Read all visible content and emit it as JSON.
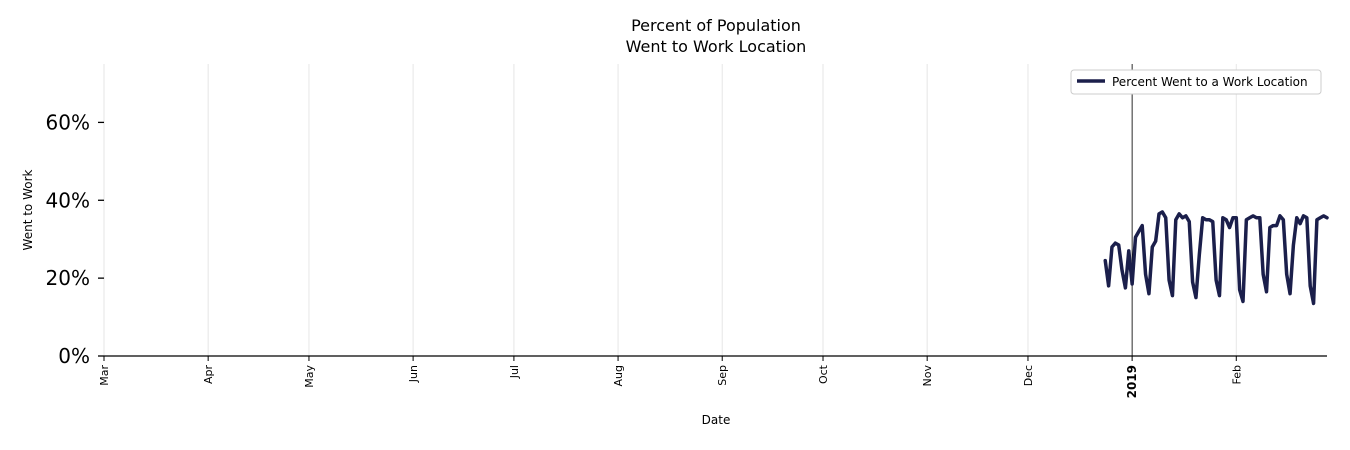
{
  "chart_data": {
    "type": "line",
    "title_line1": "Percent of Population",
    "title_line2": "Went to Work Location",
    "ylabel": "Went to Work",
    "xlabel": "Date",
    "ylim": [
      0,
      75
    ],
    "yticks": [
      0,
      20,
      40,
      60
    ],
    "ytick_labels": [
      "0%",
      "20%",
      "40%",
      "60%"
    ],
    "xlim": [
      "2018-03-01",
      "2019-02-28"
    ],
    "xticks": [
      {
        "date": "2018-03-01",
        "label": "Mar"
      },
      {
        "date": "2018-04-01",
        "label": "Apr"
      },
      {
        "date": "2018-05-01",
        "label": "May"
      },
      {
        "date": "2018-06-01",
        "label": "Jun"
      },
      {
        "date": "2018-07-01",
        "label": "Jul"
      },
      {
        "date": "2018-08-01",
        "label": "Aug"
      },
      {
        "date": "2018-09-01",
        "label": "Sep"
      },
      {
        "date": "2018-10-01",
        "label": "Oct"
      },
      {
        "date": "2018-11-01",
        "label": "Nov"
      },
      {
        "date": "2018-12-01",
        "label": "Dec"
      },
      {
        "date": "2019-01-01",
        "label": "2019",
        "bold": true
      },
      {
        "date": "2019-02-01",
        "label": "Feb"
      }
    ],
    "vline": "2019-01-01",
    "grid": "vertical",
    "legend": "top-right",
    "series": [
      {
        "name": "Percent Went to a Work Location",
        "color": "#1b1f4b",
        "x": [
          "2018-12-24",
          "2018-12-25",
          "2018-12-26",
          "2018-12-27",
          "2018-12-28",
          "2018-12-29",
          "2018-12-30",
          "2018-12-31",
          "2019-01-01",
          "2019-01-02",
          "2019-01-03",
          "2019-01-04",
          "2019-01-05",
          "2019-01-06",
          "2019-01-07",
          "2019-01-08",
          "2019-01-09",
          "2019-01-10",
          "2019-01-11",
          "2019-01-12",
          "2019-01-13",
          "2019-01-14",
          "2019-01-15",
          "2019-01-16",
          "2019-01-17",
          "2019-01-18",
          "2019-01-19",
          "2019-01-20",
          "2019-01-21",
          "2019-01-22",
          "2019-01-23",
          "2019-01-24",
          "2019-01-25",
          "2019-01-26",
          "2019-01-27",
          "2019-01-28",
          "2019-01-29",
          "2019-01-30",
          "2019-01-31",
          "2019-02-01",
          "2019-02-02",
          "2019-02-03",
          "2019-02-04",
          "2019-02-05",
          "2019-02-06",
          "2019-02-07",
          "2019-02-08",
          "2019-02-09",
          "2019-02-10",
          "2019-02-11",
          "2019-02-12",
          "2019-02-13",
          "2019-02-14",
          "2019-02-15",
          "2019-02-16",
          "2019-02-17",
          "2019-02-18",
          "2019-02-19",
          "2019-02-20",
          "2019-02-21",
          "2019-02-22",
          "2019-02-23",
          "2019-02-24",
          "2019-02-25",
          "2019-02-26",
          "2019-02-27",
          "2019-02-28"
        ],
        "values": [
          24.5,
          18,
          28,
          29,
          28.5,
          22,
          17.5,
          27,
          18.5,
          30.5,
          32,
          33.5,
          21,
          16,
          28,
          29.5,
          36.5,
          37,
          35.5,
          19.5,
          15.5,
          35,
          36.5,
          35.5,
          36,
          34.5,
          19,
          15,
          26,
          35.5,
          35,
          35,
          34.5,
          19.5,
          15.5,
          35.5,
          35,
          33,
          35.5,
          35.5,
          17,
          14,
          35,
          35.5,
          36,
          35.5,
          35.5,
          21,
          16.5,
          33,
          33.5,
          33.5,
          36,
          35,
          21,
          16,
          28.5,
          35.5,
          34,
          36,
          35.5,
          18,
          13.5,
          35,
          35.5,
          36,
          35.5
        ]
      }
    ]
  }
}
